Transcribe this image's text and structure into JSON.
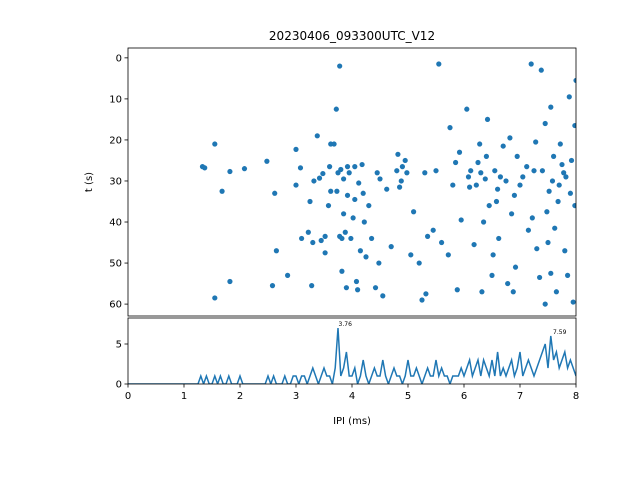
{
  "chart_data": [
    {
      "type": "scatter",
      "title": "20230406_093300UTC_V12",
      "ylabel": "t (s)",
      "color": "#1f77b4",
      "xlim": [
        0,
        8
      ],
      "ylim": [
        62.9,
        -2.4
      ],
      "yticks": [
        0,
        10,
        20,
        30,
        40,
        50,
        60
      ],
      "x": [
        1.33,
        1.37,
        1.55,
        1.68,
        1.55,
        1.82,
        1.82,
        2.08,
        2.48,
        2.58,
        2.62,
        2.65,
        2.85,
        3.0,
        3.0,
        3.08,
        3.1,
        3.22,
        3.28,
        3.25,
        3.32,
        3.38,
        3.42,
        3.45,
        3.48,
        3.52,
        3.52,
        3.58,
        3.6,
        3.62,
        3.68,
        3.62,
        3.72,
        3.73,
        3.75,
        3.78,
        3.78,
        3.8,
        3.82,
        3.82,
        3.85,
        3.85,
        3.88,
        3.9,
        3.92,
        3.95,
        3.98,
        4.02,
        4.05,
        4.05,
        4.08,
        4.12,
        4.15,
        4.18,
        4.2,
        4.22,
        4.25,
        4.3,
        4.35,
        4.42,
        4.45,
        4.48,
        4.5,
        4.55,
        4.62,
        4.7,
        4.8,
        4.82,
        4.85,
        4.88,
        4.9,
        4.95,
        4.98,
        5.05,
        5.1,
        5.2,
        5.25,
        5.32,
        5.35,
        5.45,
        5.5,
        5.55,
        5.6,
        5.72,
        5.75,
        5.8,
        5.85,
        5.88,
        5.92,
        5.95,
        6.05,
        6.08,
        6.12,
        6.18,
        6.22,
        6.25,
        6.28,
        6.3,
        6.32,
        6.35,
        6.38,
        6.42,
        6.45,
        6.5,
        6.52,
        6.55,
        6.58,
        6.62,
        6.65,
        6.7,
        6.75,
        6.78,
        6.82,
        6.85,
        6.88,
        6.92,
        6.95,
        7.0,
        7.05,
        7.12,
        7.15,
        7.2,
        7.22,
        7.28,
        7.3,
        7.35,
        7.38,
        7.4,
        7.45,
        7.48,
        7.52,
        7.55,
        7.6,
        7.62,
        7.65,
        7.7,
        7.72,
        7.75,
        7.8,
        7.82,
        7.85,
        7.88,
        7.9,
        7.92,
        7.95,
        7.98,
        8.0,
        7.98,
        7.45,
        7.5,
        7.25,
        6.9,
        6.6,
        6.4,
        6.1,
        5.3,
        4.1,
        3.92,
        3.3,
        7.68,
        7.78,
        7.58,
        7.55
      ],
      "y": [
        26.5,
        26.8,
        21,
        32.5,
        58.5,
        27.7,
        54.5,
        27,
        25.2,
        55.5,
        33,
        47,
        53,
        22.3,
        31,
        26.8,
        44,
        42.5,
        55.5,
        35,
        30,
        19,
        29.3,
        44.5,
        28.2,
        43.5,
        47.5,
        36,
        26.5,
        21,
        21,
        32.5,
        12.5,
        32.5,
        28,
        2,
        43.5,
        27.2,
        52,
        44,
        29.5,
        38,
        42.5,
        56,
        26.5,
        28,
        44,
        39,
        26.5,
        34.5,
        54.5,
        30.5,
        47,
        26,
        33,
        40,
        48.5,
        36,
        44,
        56,
        28,
        50,
        29.5,
        58,
        32,
        46,
        27.5,
        23.5,
        31.5,
        30,
        26.5,
        25,
        28,
        48,
        37.5,
        50,
        59,
        57.5,
        43.5,
        42,
        27.5,
        1.5,
        45,
        48,
        17,
        31,
        25.5,
        56.5,
        23,
        39.5,
        12.5,
        29,
        27.5,
        45.5,
        31,
        25.5,
        21,
        28,
        57,
        40,
        29.5,
        15,
        36,
        53,
        48,
        27.5,
        35,
        44,
        29,
        21.5,
        30,
        55,
        19.5,
        38,
        57,
        51,
        24,
        31,
        29,
        26.5,
        42,
        1.5,
        39,
        20.5,
        46.5,
        53.5,
        3,
        27.5,
        16,
        37.5,
        32.5,
        12,
        24,
        41.5,
        57,
        31,
        21,
        26,
        47,
        29,
        53,
        9.5,
        33,
        25,
        59.5,
        36,
        5.5,
        16.5,
        60,
        45,
        27.5,
        33.5,
        32,
        24,
        31.5,
        28,
        56.5,
        33.5,
        45,
        35,
        28,
        30,
        52.5
      ]
    },
    {
      "type": "line",
      "xlabel": "IPI (ms)",
      "color": "#1f77b4",
      "xlim": [
        0,
        8
      ],
      "ylim": [
        0,
        8.25
      ],
      "xticks": [
        0,
        1,
        2,
        3,
        4,
        5,
        6,
        7,
        8
      ],
      "yticks": [
        0,
        5
      ],
      "x": [
        0,
        0.05,
        0.1,
        0.15,
        0.2,
        0.25,
        0.3,
        0.35,
        0.4,
        0.45,
        0.5,
        0.55,
        0.6,
        0.65,
        0.7,
        0.75,
        0.8,
        0.85,
        0.9,
        0.95,
        1,
        1.05,
        1.1,
        1.15,
        1.2,
        1.25,
        1.3,
        1.35,
        1.4,
        1.45,
        1.5,
        1.55,
        1.6,
        1.65,
        1.7,
        1.75,
        1.8,
        1.85,
        1.9,
        1.95,
        2,
        2.05,
        2.1,
        2.15,
        2.2,
        2.25,
        2.3,
        2.35,
        2.4,
        2.45,
        2.5,
        2.55,
        2.6,
        2.65,
        2.7,
        2.75,
        2.8,
        2.85,
        2.9,
        2.95,
        3,
        3.05,
        3.1,
        3.15,
        3.2,
        3.25,
        3.3,
        3.35,
        3.4,
        3.45,
        3.5,
        3.55,
        3.6,
        3.65,
        3.7,
        3.75,
        3.8,
        3.85,
        3.9,
        3.95,
        4,
        4.05,
        4.1,
        4.15,
        4.2,
        4.25,
        4.3,
        4.35,
        4.4,
        4.45,
        4.5,
        4.55,
        4.6,
        4.65,
        4.7,
        4.75,
        4.8,
        4.85,
        4.9,
        4.95,
        5,
        5.05,
        5.1,
        5.15,
        5.2,
        5.25,
        5.3,
        5.35,
        5.4,
        5.45,
        5.5,
        5.55,
        5.6,
        5.65,
        5.7,
        5.75,
        5.8,
        5.85,
        5.9,
        5.95,
        6,
        6.05,
        6.1,
        6.15,
        6.2,
        6.25,
        6.3,
        6.35,
        6.4,
        6.45,
        6.5,
        6.55,
        6.6,
        6.65,
        6.7,
        6.75,
        6.8,
        6.85,
        6.9,
        6.95,
        7,
        7.05,
        7.1,
        7.15,
        7.2,
        7.25,
        7.3,
        7.35,
        7.4,
        7.45,
        7.5,
        7.55,
        7.6,
        7.65,
        7.7,
        7.75,
        7.8,
        7.85,
        7.9,
        7.95,
        8
      ],
      "values": [
        0,
        0,
        0,
        0,
        0,
        0,
        0,
        0,
        0,
        0,
        0,
        0,
        0,
        0,
        0,
        0,
        0,
        0,
        0,
        0,
        0,
        0,
        0,
        0,
        0,
        0,
        1,
        0,
        1,
        0,
        0,
        1,
        0,
        1,
        0,
        0,
        1,
        0,
        0,
        0,
        1,
        0,
        0,
        0,
        0,
        0,
        0,
        0,
        0,
        0,
        1,
        0,
        1,
        0,
        0,
        0,
        1,
        0,
        0,
        1,
        1,
        0,
        1,
        1,
        0,
        1,
        2,
        1,
        0,
        1,
        2,
        1,
        1,
        0,
        2,
        7,
        1,
        2,
        4,
        1,
        1,
        2,
        0,
        1,
        3,
        1,
        0,
        1,
        2,
        1,
        1,
        3,
        1,
        0,
        1,
        2,
        1,
        1,
        0,
        1,
        3,
        1,
        1,
        2,
        1,
        0,
        1,
        2,
        1,
        1,
        3,
        1,
        2,
        1,
        1,
        0,
        1,
        1,
        1,
        2,
        1,
        2,
        3,
        1,
        2,
        3,
        1,
        3,
        2,
        1,
        3,
        1,
        4,
        1,
        2,
        1,
        2,
        3,
        1,
        2,
        4,
        1,
        2,
        3,
        2,
        1,
        2,
        3,
        4,
        5,
        2,
        6,
        3,
        4,
        2,
        3,
        4,
        2,
        3,
        2,
        1
      ],
      "annotations": [
        {
          "text": "3.76",
          "x": 3.76,
          "y": 7
        },
        {
          "text": "7.59",
          "x": 7.59,
          "y": 6
        }
      ]
    }
  ]
}
